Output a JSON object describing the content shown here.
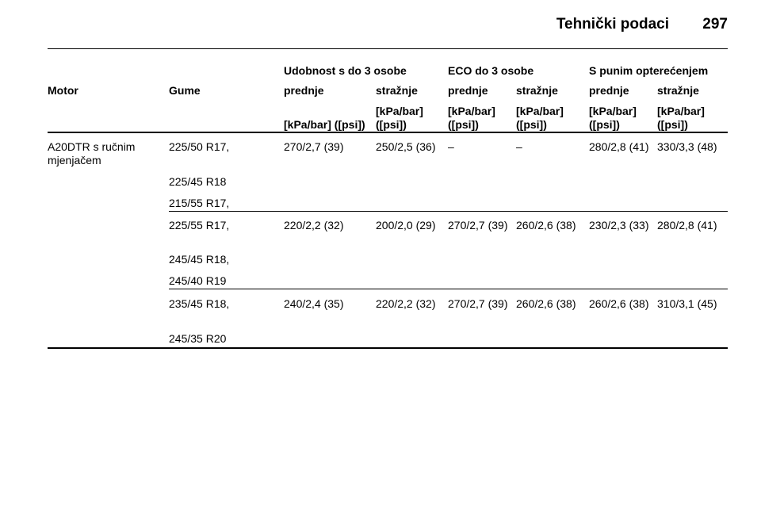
{
  "header": {
    "title": "Tehnički podaci",
    "page_number": "297"
  },
  "table": {
    "group_headers": [
      "Udobnost s do 3 osobe",
      "ECO do 3 osobe",
      "S punim opterećenjem"
    ],
    "columns": [
      "Motor",
      "Gume",
      "prednje",
      "stražnje",
      "prednje",
      "stražnje",
      "prednje",
      "stražnje"
    ],
    "units": [
      "[kPa/bar] ([psi])",
      "[kPa/bar] ([psi])",
      "[kPa/bar] ([psi])",
      "[kPa/bar] ([psi])",
      "[kPa/bar] ([psi])",
      "[kPa/bar] ([psi])"
    ],
    "groups": [
      {
        "motor": "A20DTR s ručnim mjenjačem",
        "tyres": [
          "225/50 R17,",
          "225/45 R18",
          "215/55 R17,"
        ],
        "values": [
          "270/2,7 (39)",
          "250/2,5 (36)",
          "–",
          "–",
          "280/2,8 (41)",
          "330/3,3 (48)"
        ]
      },
      {
        "tyres": [
          "225/55 R17,",
          "245/45 R18,",
          "245/40 R19"
        ],
        "values": [
          "220/2,2 (32)",
          "200/2,0 (29)",
          "270/2,7 (39)",
          "260/2,6 (38)",
          "230/2,3 (33)",
          "280/2,8 (41)"
        ]
      },
      {
        "tyres": [
          "235/45 R18,",
          "245/35 R20"
        ],
        "values": [
          "240/2,4 (35)",
          "220/2,2 (32)",
          "270/2,7 (39)",
          "260/2,6 (38)",
          "260/2,6 (38)",
          "310/3,1 (45)"
        ]
      }
    ]
  }
}
